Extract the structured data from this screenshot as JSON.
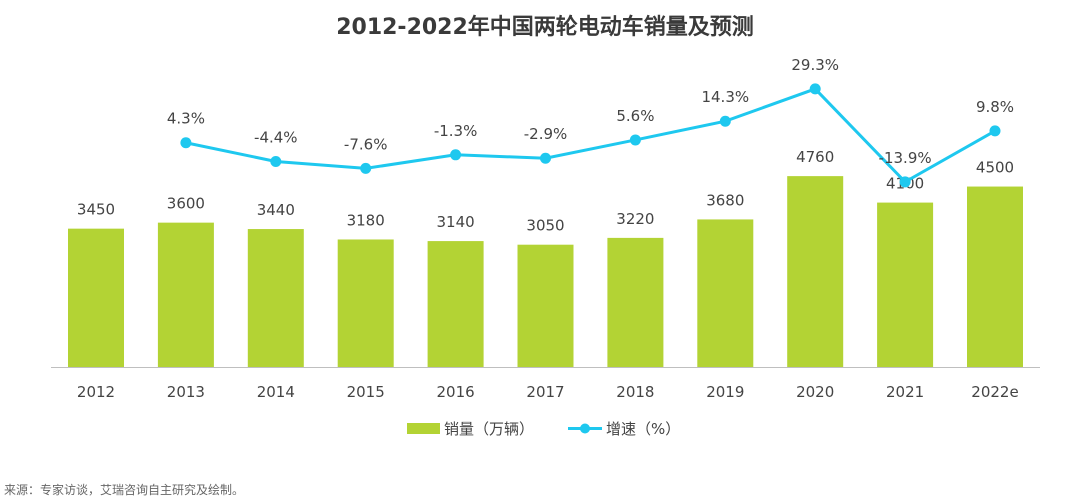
{
  "chart_data": {
    "type": "bar+line",
    "title": "2012-2022年中国两轮电动车销量及预测",
    "categories": [
      "2012",
      "2013",
      "2014",
      "2015",
      "2016",
      "2017",
      "2018",
      "2019",
      "2020",
      "2021",
      "2022e"
    ],
    "series": [
      {
        "name": "销量（万辆）",
        "type": "bar",
        "color": "#b3d334",
        "values": [
          3450,
          3600,
          3440,
          3180,
          3140,
          3050,
          3220,
          3680,
          4760,
          4100,
          4500
        ]
      },
      {
        "name": "增速（%）",
        "type": "line",
        "color": "#1ec8ef",
        "values": [
          null,
          4.3,
          -4.4,
          -7.6,
          -1.3,
          -2.9,
          5.6,
          14.3,
          29.3,
          -13.9,
          9.8
        ],
        "labels": [
          null,
          "4.3%",
          "-4.4%",
          "-7.6%",
          "-1.3%",
          "-2.9%",
          "5.6%",
          "14.3%",
          "29.3%",
          "-13.9%",
          "9.8%"
        ]
      }
    ],
    "legend_position": "bottom",
    "grid": false
  },
  "source": "来源：专家访谈，艾瑞咨询自主研究及绘制。"
}
